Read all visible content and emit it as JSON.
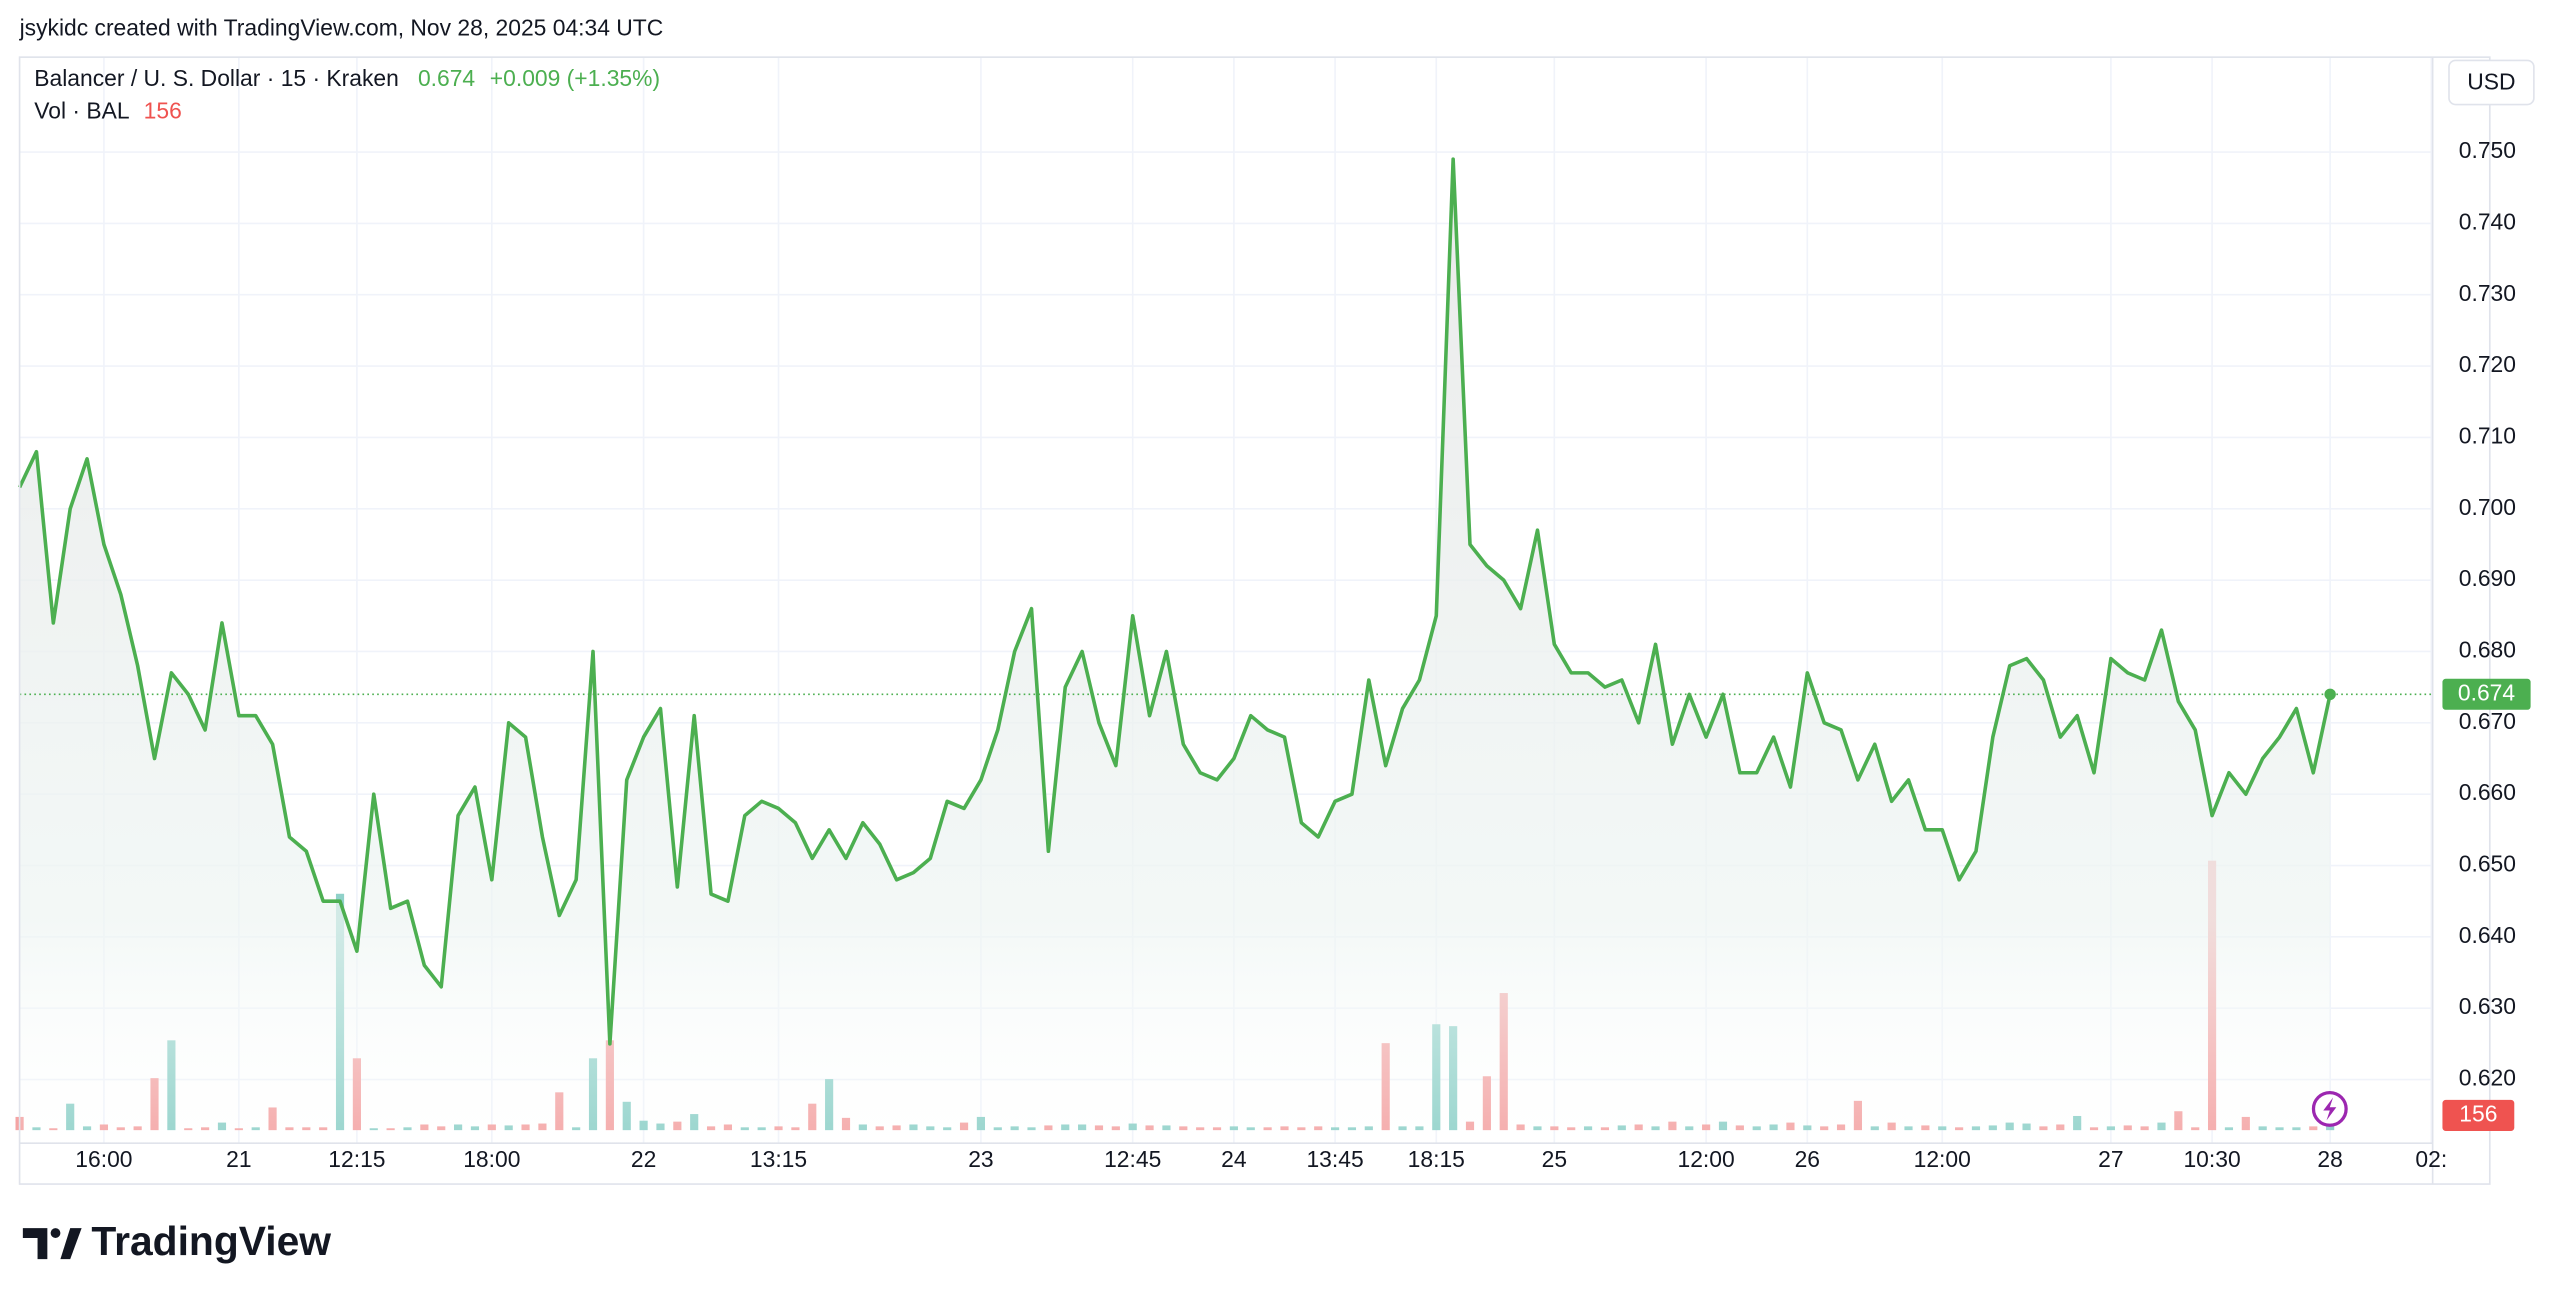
{
  "header": {
    "attribution": "jsykidc created with TradingView.com, Nov 28, 2025 04:34 UTC",
    "change": "+0.009 (+1.35%)",
    "currency": "USD",
    "brand": "TradingView"
  },
  "chart_data": {
    "type": "line",
    "categories": [
      null,
      null,
      null,
      null,
      null,
      "16:00",
      null,
      null,
      null,
      null,
      null,
      null,
      null,
      "21",
      null,
      null,
      null,
      null,
      null,
      null,
      "12:15",
      null,
      null,
      null,
      null,
      null,
      null,
      null,
      "18:00",
      null,
      null,
      null,
      null,
      null,
      null,
      null,
      null,
      "22",
      null,
      null,
      null,
      null,
      null,
      null,
      null,
      "13:15",
      null,
      null,
      null,
      null,
      null,
      null,
      null,
      null,
      null,
      null,
      null,
      "23",
      null,
      null,
      null,
      null,
      null,
      null,
      null,
      null,
      "12:45",
      null,
      null,
      null,
      null,
      null,
      "24",
      null,
      null,
      null,
      null,
      null,
      "13:45",
      null,
      null,
      null,
      null,
      null,
      "18:15",
      null,
      null,
      null,
      null,
      null,
      null,
      "25",
      null,
      null,
      null,
      null,
      null,
      null,
      null,
      null,
      "12:00",
      null,
      null,
      null,
      null,
      null,
      "26",
      null,
      null,
      null,
      null,
      null,
      null,
      null,
      "12:00",
      null,
      null,
      null,
      null,
      null,
      null,
      null,
      null,
      null,
      "27",
      null,
      null,
      null,
      null,
      null,
      "10:30",
      null,
      null,
      null,
      null,
      null,
      null,
      "28",
      null,
      null,
      null,
      null,
      null,
      "02:"
    ],
    "series": [
      {
        "name": "Balancer / U. S. Dollar · 15 · Kraken",
        "color": "#4caf50",
        "values": [
          0.703,
          0.708,
          0.684,
          0.7,
          0.707,
          0.695,
          0.688,
          0.678,
          0.665,
          0.677,
          0.674,
          0.669,
          0.684,
          0.671,
          0.671,
          0.667,
          0.654,
          0.652,
          0.645,
          0.645,
          0.638,
          0.66,
          0.644,
          0.645,
          0.636,
          0.633,
          0.657,
          0.661,
          0.648,
          0.67,
          0.668,
          0.654,
          0.643,
          0.648,
          0.68,
          0.625,
          0.662,
          0.668,
          0.672,
          0.647,
          0.671,
          0.646,
          0.645,
          0.657,
          0.659,
          0.658,
          0.656,
          0.651,
          0.655,
          0.651,
          0.656,
          0.653,
          0.648,
          0.649,
          0.651,
          0.659,
          0.658,
          0.662,
          0.669,
          0.68,
          0.686,
          0.652,
          0.675,
          0.68,
          0.67,
          0.664,
          0.685,
          0.671,
          0.68,
          0.667,
          0.663,
          0.662,
          0.665,
          0.671,
          0.669,
          0.668,
          0.656,
          0.654,
          0.659,
          0.66,
          0.676,
          0.664,
          0.672,
          0.676,
          0.685,
          0.749,
          0.695,
          0.692,
          0.69,
          0.686,
          0.697,
          0.681,
          0.677,
          0.677,
          0.675,
          0.676,
          0.67,
          0.681,
          0.667,
          0.674,
          0.668,
          0.674,
          0.663,
          0.663,
          0.668,
          0.661,
          0.677,
          0.67,
          0.669,
          0.662,
          0.667,
          0.659,
          0.662,
          0.655,
          0.655,
          0.648,
          0.652,
          0.668,
          0.678,
          0.679,
          0.676,
          0.668,
          0.671,
          0.663,
          0.679,
          0.677,
          0.676,
          0.683,
          0.673,
          0.669,
          0.657,
          0.663,
          0.66,
          0.665,
          0.668,
          0.672,
          0.663,
          0.674,
          null,
          null,
          null,
          null,
          null,
          null
        ]
      },
      {
        "name": "Vol · BAL",
        "type": "bar",
        "colors": {
          "up": "#8fd1c9",
          "down": "#f4a4a4"
        },
        "last_color": "#ef5350",
        "values": [
          140,
          30,
          20,
          280,
          40,
          60,
          30,
          40,
          550,
          950,
          20,
          30,
          80,
          20,
          30,
          240,
          30,
          30,
          30,
          2500,
          760,
          20,
          20,
          30,
          60,
          40,
          60,
          40,
          60,
          50,
          60,
          70,
          400,
          30,
          760,
          950,
          300,
          100,
          70,
          90,
          170,
          40,
          60,
          30,
          30,
          40,
          30,
          280,
          540,
          130,
          60,
          40,
          50,
          60,
          40,
          30,
          80,
          140,
          30,
          40,
          30,
          50,
          60,
          60,
          50,
          40,
          70,
          50,
          50,
          40,
          30,
          30,
          40,
          30,
          30,
          40,
          30,
          40,
          30,
          30,
          40,
          920,
          40,
          40,
          1120,
          1100,
          90,
          570,
          1450,
          60,
          40,
          40,
          30,
          40,
          30,
          50,
          60,
          40,
          90,
          40,
          60,
          90,
          50,
          40,
          60,
          80,
          50,
          40,
          60,
          310,
          40,
          80,
          40,
          50,
          40,
          30,
          40,
          50,
          80,
          70,
          40,
          60,
          150,
          30,
          40,
          50,
          40,
          80,
          200,
          30,
          2850,
          30,
          140,
          40,
          30,
          30,
          40,
          156,
          null,
          null,
          null,
          null,
          null,
          null
        ]
      }
    ],
    "ylim": [
      0.6065,
      0.7633
    ],
    "yticks": [
      {
        "value": 0.62,
        "label": "0.620"
      },
      {
        "value": 0.63,
        "label": "0.630"
      },
      {
        "value": 0.64,
        "label": "0.640"
      },
      {
        "value": 0.65,
        "label": "0.650"
      },
      {
        "value": 0.66,
        "label": "0.660"
      },
      {
        "value": 0.67,
        "label": "0.670"
      },
      {
        "value": 0.68,
        "label": "0.680"
      },
      {
        "value": 0.69,
        "label": "0.690"
      },
      {
        "value": 0.7,
        "label": "0.700"
      },
      {
        "value": 0.71,
        "label": "0.710"
      },
      {
        "value": 0.72,
        "label": "0.720"
      },
      {
        "value": 0.73,
        "label": "0.730"
      },
      {
        "value": 0.74,
        "label": "0.740"
      },
      {
        "value": 0.75,
        "label": "0.750"
      }
    ],
    "grid": true,
    "last_value_line": true
  }
}
